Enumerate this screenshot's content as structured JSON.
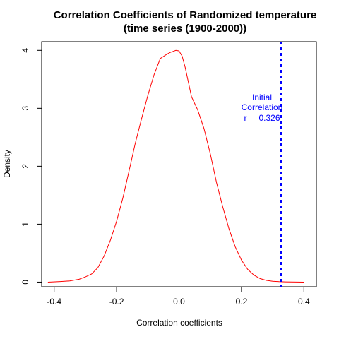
{
  "chart_data": {
    "type": "line",
    "title": [
      "Correlation Coefficients of Randomized temperature",
      "(time series (1900-2000))"
    ],
    "xlabel": "Correlation coefficients",
    "ylabel": "Density",
    "xlim": [
      -0.44,
      0.44
    ],
    "ylim": [
      -0.08,
      4.15
    ],
    "x_ticks": [
      -0.4,
      -0.2,
      0.0,
      0.2,
      0.4
    ],
    "x_tick_labels": [
      "-0.4",
      "-0.2",
      "0.0",
      "0.2",
      "0.4"
    ],
    "y_ticks": [
      0,
      1,
      2,
      3,
      4
    ],
    "y_tick_labels": [
      "0",
      "1",
      "2",
      "3",
      "4"
    ],
    "grid": false,
    "series": [
      {
        "color": "#ff0000",
        "x": [
          -0.42,
          -0.38,
          -0.35,
          -0.32,
          -0.3,
          -0.28,
          -0.26,
          -0.24,
          -0.22,
          -0.2,
          -0.18,
          -0.16,
          -0.14,
          -0.12,
          -0.1,
          -0.08,
          -0.06,
          -0.04,
          -0.03,
          -0.02,
          -0.01,
          0.0,
          0.01,
          0.02,
          0.03,
          0.04,
          0.06,
          0.08,
          0.1,
          0.12,
          0.14,
          0.16,
          0.18,
          0.2,
          0.22,
          0.24,
          0.26,
          0.28,
          0.3,
          0.32,
          0.34,
          0.36,
          0.4
        ],
        "y": [
          0.0,
          0.01,
          0.02,
          0.05,
          0.09,
          0.14,
          0.25,
          0.45,
          0.72,
          1.05,
          1.45,
          1.92,
          2.4,
          2.82,
          3.22,
          3.58,
          3.86,
          3.93,
          3.96,
          3.98,
          4.0,
          3.99,
          3.9,
          3.7,
          3.45,
          3.2,
          2.97,
          2.65,
          2.22,
          1.72,
          1.3,
          0.92,
          0.61,
          0.38,
          0.22,
          0.12,
          0.06,
          0.03,
          0.015,
          0.008,
          0.004,
          0.002,
          0.0
        ]
      }
    ],
    "reference_line": {
      "x": 0.326,
      "color": "#0000ff",
      "style": "dotted"
    },
    "annotation": {
      "lines": [
        "Initial",
        "Correlation",
        "r =  0.326"
      ],
      "color": "#0000ff"
    }
  }
}
